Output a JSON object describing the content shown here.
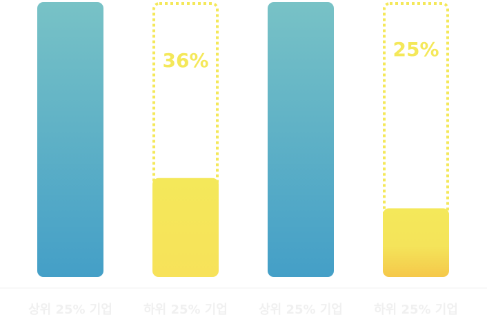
{
  "chart_data": {
    "type": "bar",
    "categories": [
      "상위 25% 기업",
      "하위 25% 기업",
      "상위 25% 기업",
      "하위 25% 기업"
    ],
    "values": [
      100,
      36,
      100,
      25
    ],
    "data_labels": [
      "",
      "36%",
      "",
      "25%"
    ],
    "ylim": [
      0,
      100
    ],
    "grid": false,
    "legend": "none"
  },
  "colors": {
    "top_gradient_start": "#78c2c6",
    "top_gradient_end": "#449fc7",
    "bottom_fill": "#f4e85a",
    "bottom_fill_end": "#f5c84a",
    "dotted_outline": "#f4e85a",
    "label_text": "#f0f0f0",
    "baseline": "#f2f2f2"
  }
}
